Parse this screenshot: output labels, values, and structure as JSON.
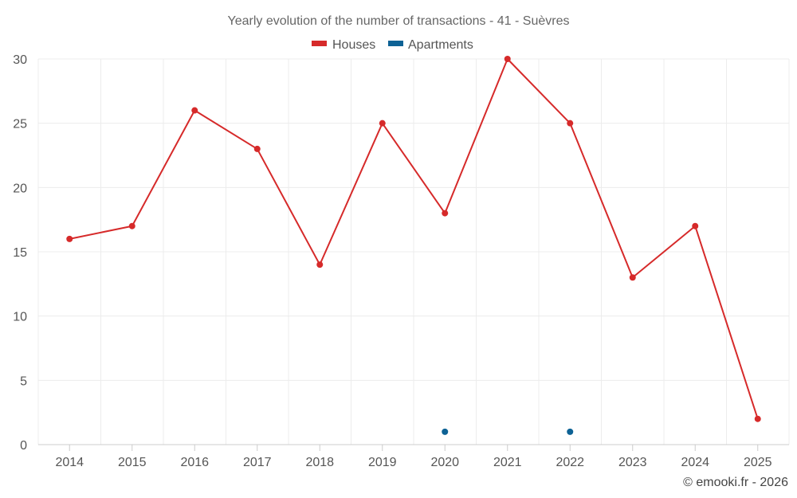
{
  "chart_data": {
    "type": "line",
    "title": "Yearly evolution of the number of transactions - 41 - Suèvres",
    "categories": [
      "2014",
      "2015",
      "2016",
      "2017",
      "2018",
      "2019",
      "2020",
      "2021",
      "2022",
      "2023",
      "2024",
      "2025"
    ],
    "series": [
      {
        "name": "Houses",
        "color": "#d62a2a",
        "values": [
          16,
          17,
          26,
          23,
          14,
          25,
          18,
          30,
          25,
          13,
          17,
          2
        ]
      },
      {
        "name": "Apartments",
        "color": "#0d6295",
        "values": [
          null,
          null,
          null,
          null,
          null,
          null,
          1,
          null,
          1,
          null,
          null,
          null
        ]
      }
    ],
    "ylim": [
      0,
      30
    ],
    "yticks": [
      0,
      5,
      10,
      15,
      20,
      25,
      30
    ],
    "xlabel": "",
    "ylabel": "",
    "grid": true,
    "legend": "top-center"
  },
  "credit": "© emooki.fr - 2026"
}
